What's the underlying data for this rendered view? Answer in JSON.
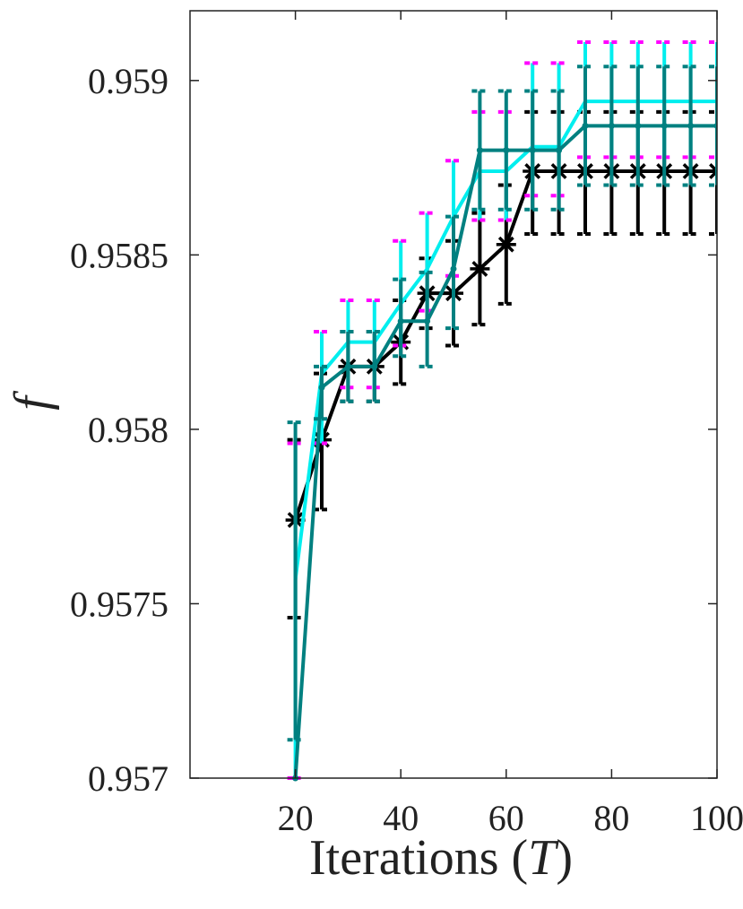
{
  "chart_data": {
    "type": "line",
    "xlabel": "Iterations",
    "xlabel_var": "T",
    "ylabel": "f",
    "xlim": [
      0,
      100
    ],
    "ylim": [
      0.957,
      0.9592
    ],
    "xticks": [
      20,
      40,
      60,
      80,
      100
    ],
    "xtick_labels": [
      "20",
      "40",
      "60",
      "80",
      "100"
    ],
    "yticks": [
      0.957,
      0.9575,
      0.958,
      0.9585,
      0.959
    ],
    "ytick_labels": [
      "0.957",
      "0.9575",
      "0.958",
      "0.9585",
      "0.959"
    ],
    "grid": false,
    "legend": "none",
    "x": [
      20,
      25,
      30,
      35,
      40,
      45,
      50,
      55,
      60,
      65,
      70,
      75,
      80,
      85,
      90,
      95,
      100
    ],
    "series": [
      {
        "color": "#000000",
        "marker": "asterisk",
        "values": [
          0.95774,
          0.95797,
          0.95818,
          0.95818,
          0.95825,
          0.95839,
          0.95839,
          0.95846,
          0.95853,
          0.95874,
          0.95874,
          0.95874,
          0.95874,
          0.95874,
          0.95874,
          0.95874,
          0.95874
        ],
        "err_low": [
          0.95746,
          0.95777,
          0.95808,
          0.95808,
          0.95813,
          0.95829,
          0.95824,
          0.9583,
          0.95836,
          0.95856,
          0.95856,
          0.95856,
          0.95856,
          0.95856,
          0.95856,
          0.95856,
          0.95856
        ],
        "err_high": [
          0.95797,
          0.95816,
          0.95828,
          0.95828,
          0.95837,
          0.95849,
          0.95854,
          0.95862,
          0.9587,
          0.95891,
          0.95891,
          0.95891,
          0.95891,
          0.95891,
          0.95891,
          0.95891,
          0.95891
        ]
      },
      {
        "color": "#00eeee",
        "marker": "none",
        "values": [
          0.95757,
          0.95816,
          0.95825,
          0.95825,
          0.95836,
          0.95846,
          0.95861,
          0.95874,
          0.95874,
          0.95881,
          0.95881,
          0.95894,
          0.95894,
          0.95894,
          0.95894,
          0.95894,
          0.95894
        ],
        "err_low": [
          0.957,
          0.95796,
          0.95812,
          0.95812,
          0.95824,
          0.95834,
          0.95844,
          0.9586,
          0.9586,
          0.95867,
          0.95867,
          0.95878,
          0.95878,
          0.95878,
          0.95878,
          0.95878,
          0.95878
        ],
        "err_high": [
          0.95796,
          0.95828,
          0.95837,
          0.95837,
          0.95854,
          0.95862,
          0.95877,
          0.95891,
          0.95891,
          0.95905,
          0.95905,
          0.95911,
          0.95911,
          0.95911,
          0.95911,
          0.95911,
          0.95911
        ],
        "err_cap_color_high": "#ff00ff",
        "err_cap_color_low": "#ff00ff"
      },
      {
        "color": "#008080",
        "marker": "dot",
        "values": [
          0.957,
          0.95812,
          0.95818,
          0.95818,
          0.95831,
          0.95831,
          0.95846,
          0.9588,
          0.9588,
          0.9588,
          0.9588,
          0.95887,
          0.95887,
          0.95887,
          0.95887,
          0.95887,
          0.95887
        ],
        "err_low": [
          0.95711,
          0.95803,
          0.95808,
          0.95808,
          0.95821,
          0.95818,
          0.95829,
          0.95863,
          0.95863,
          0.95863,
          0.95863,
          0.9587,
          0.9587,
          0.9587,
          0.9587,
          0.9587,
          0.9587
        ],
        "err_high": [
          0.95802,
          0.95818,
          0.95828,
          0.95828,
          0.95843,
          0.95845,
          0.95861,
          0.95897,
          0.95897,
          0.95897,
          0.95897,
          0.95904,
          0.95904,
          0.95904,
          0.95904,
          0.95904,
          0.95904
        ]
      }
    ]
  }
}
